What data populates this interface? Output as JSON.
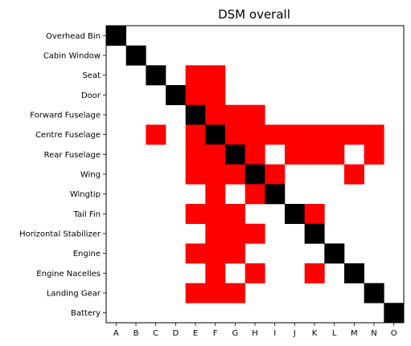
{
  "chart_data": {
    "type": "heatmap",
    "title": "DSM overall",
    "xlabel": "",
    "ylabel": "",
    "x_categories": [
      "A",
      "B",
      "C",
      "D",
      "E",
      "F",
      "G",
      "H",
      "I",
      "J",
      "K",
      "L",
      "M",
      "N",
      "O"
    ],
    "y_categories": [
      "Overhead Bin",
      "Cabin Window",
      "Seat",
      "Door",
      "Forward Fuselage",
      "Centre Fuselage",
      "Rear Fuselage",
      "Wing",
      "Wingtip",
      "Tail Fin",
      "Horizontal Stabilizer",
      "Engine",
      "Engine Nacelles",
      "Landing Gear",
      "Battery"
    ],
    "value_legend": {
      "0": "none",
      "1": "dependency",
      "2": "diagonal"
    },
    "colors": {
      "0": "#ffffff",
      "1": "#ff0000",
      "2": "#000000",
      "frame": "#000000"
    },
    "matrix": [
      [
        2,
        0,
        0,
        0,
        0,
        0,
        0,
        0,
        0,
        0,
        0,
        0,
        0,
        0,
        0
      ],
      [
        0,
        2,
        0,
        0,
        0,
        0,
        0,
        0,
        0,
        0,
        0,
        0,
        0,
        0,
        0
      ],
      [
        0,
        0,
        2,
        0,
        1,
        1,
        0,
        0,
        0,
        0,
        0,
        0,
        0,
        0,
        0
      ],
      [
        0,
        0,
        0,
        2,
        1,
        1,
        0,
        0,
        0,
        0,
        0,
        0,
        0,
        0,
        0
      ],
      [
        0,
        0,
        0,
        0,
        2,
        1,
        1,
        1,
        0,
        0,
        0,
        0,
        0,
        0,
        0
      ],
      [
        0,
        0,
        1,
        0,
        1,
        2,
        1,
        1,
        1,
        1,
        1,
        1,
        1,
        1,
        0
      ],
      [
        0,
        0,
        0,
        0,
        1,
        1,
        2,
        1,
        0,
        1,
        1,
        1,
        0,
        1,
        0
      ],
      [
        0,
        0,
        0,
        0,
        1,
        1,
        1,
        2,
        1,
        0,
        0,
        0,
        1,
        0,
        0
      ],
      [
        0,
        0,
        0,
        0,
        0,
        1,
        0,
        1,
        2,
        0,
        0,
        0,
        0,
        0,
        0
      ],
      [
        0,
        0,
        0,
        0,
        1,
        1,
        1,
        0,
        0,
        2,
        1,
        0,
        0,
        0,
        0
      ],
      [
        0,
        0,
        0,
        0,
        0,
        1,
        1,
        1,
        0,
        0,
        2,
        0,
        0,
        0,
        0
      ],
      [
        0,
        0,
        0,
        0,
        1,
        1,
        1,
        0,
        0,
        0,
        0,
        2,
        0,
        0,
        0
      ],
      [
        0,
        0,
        0,
        0,
        0,
        1,
        0,
        1,
        0,
        0,
        1,
        0,
        2,
        0,
        0
      ],
      [
        0,
        0,
        0,
        0,
        1,
        1,
        1,
        0,
        0,
        0,
        0,
        0,
        0,
        2,
        0
      ],
      [
        0,
        0,
        0,
        0,
        0,
        0,
        0,
        0,
        0,
        0,
        0,
        0,
        0,
        0,
        2
      ]
    ]
  }
}
